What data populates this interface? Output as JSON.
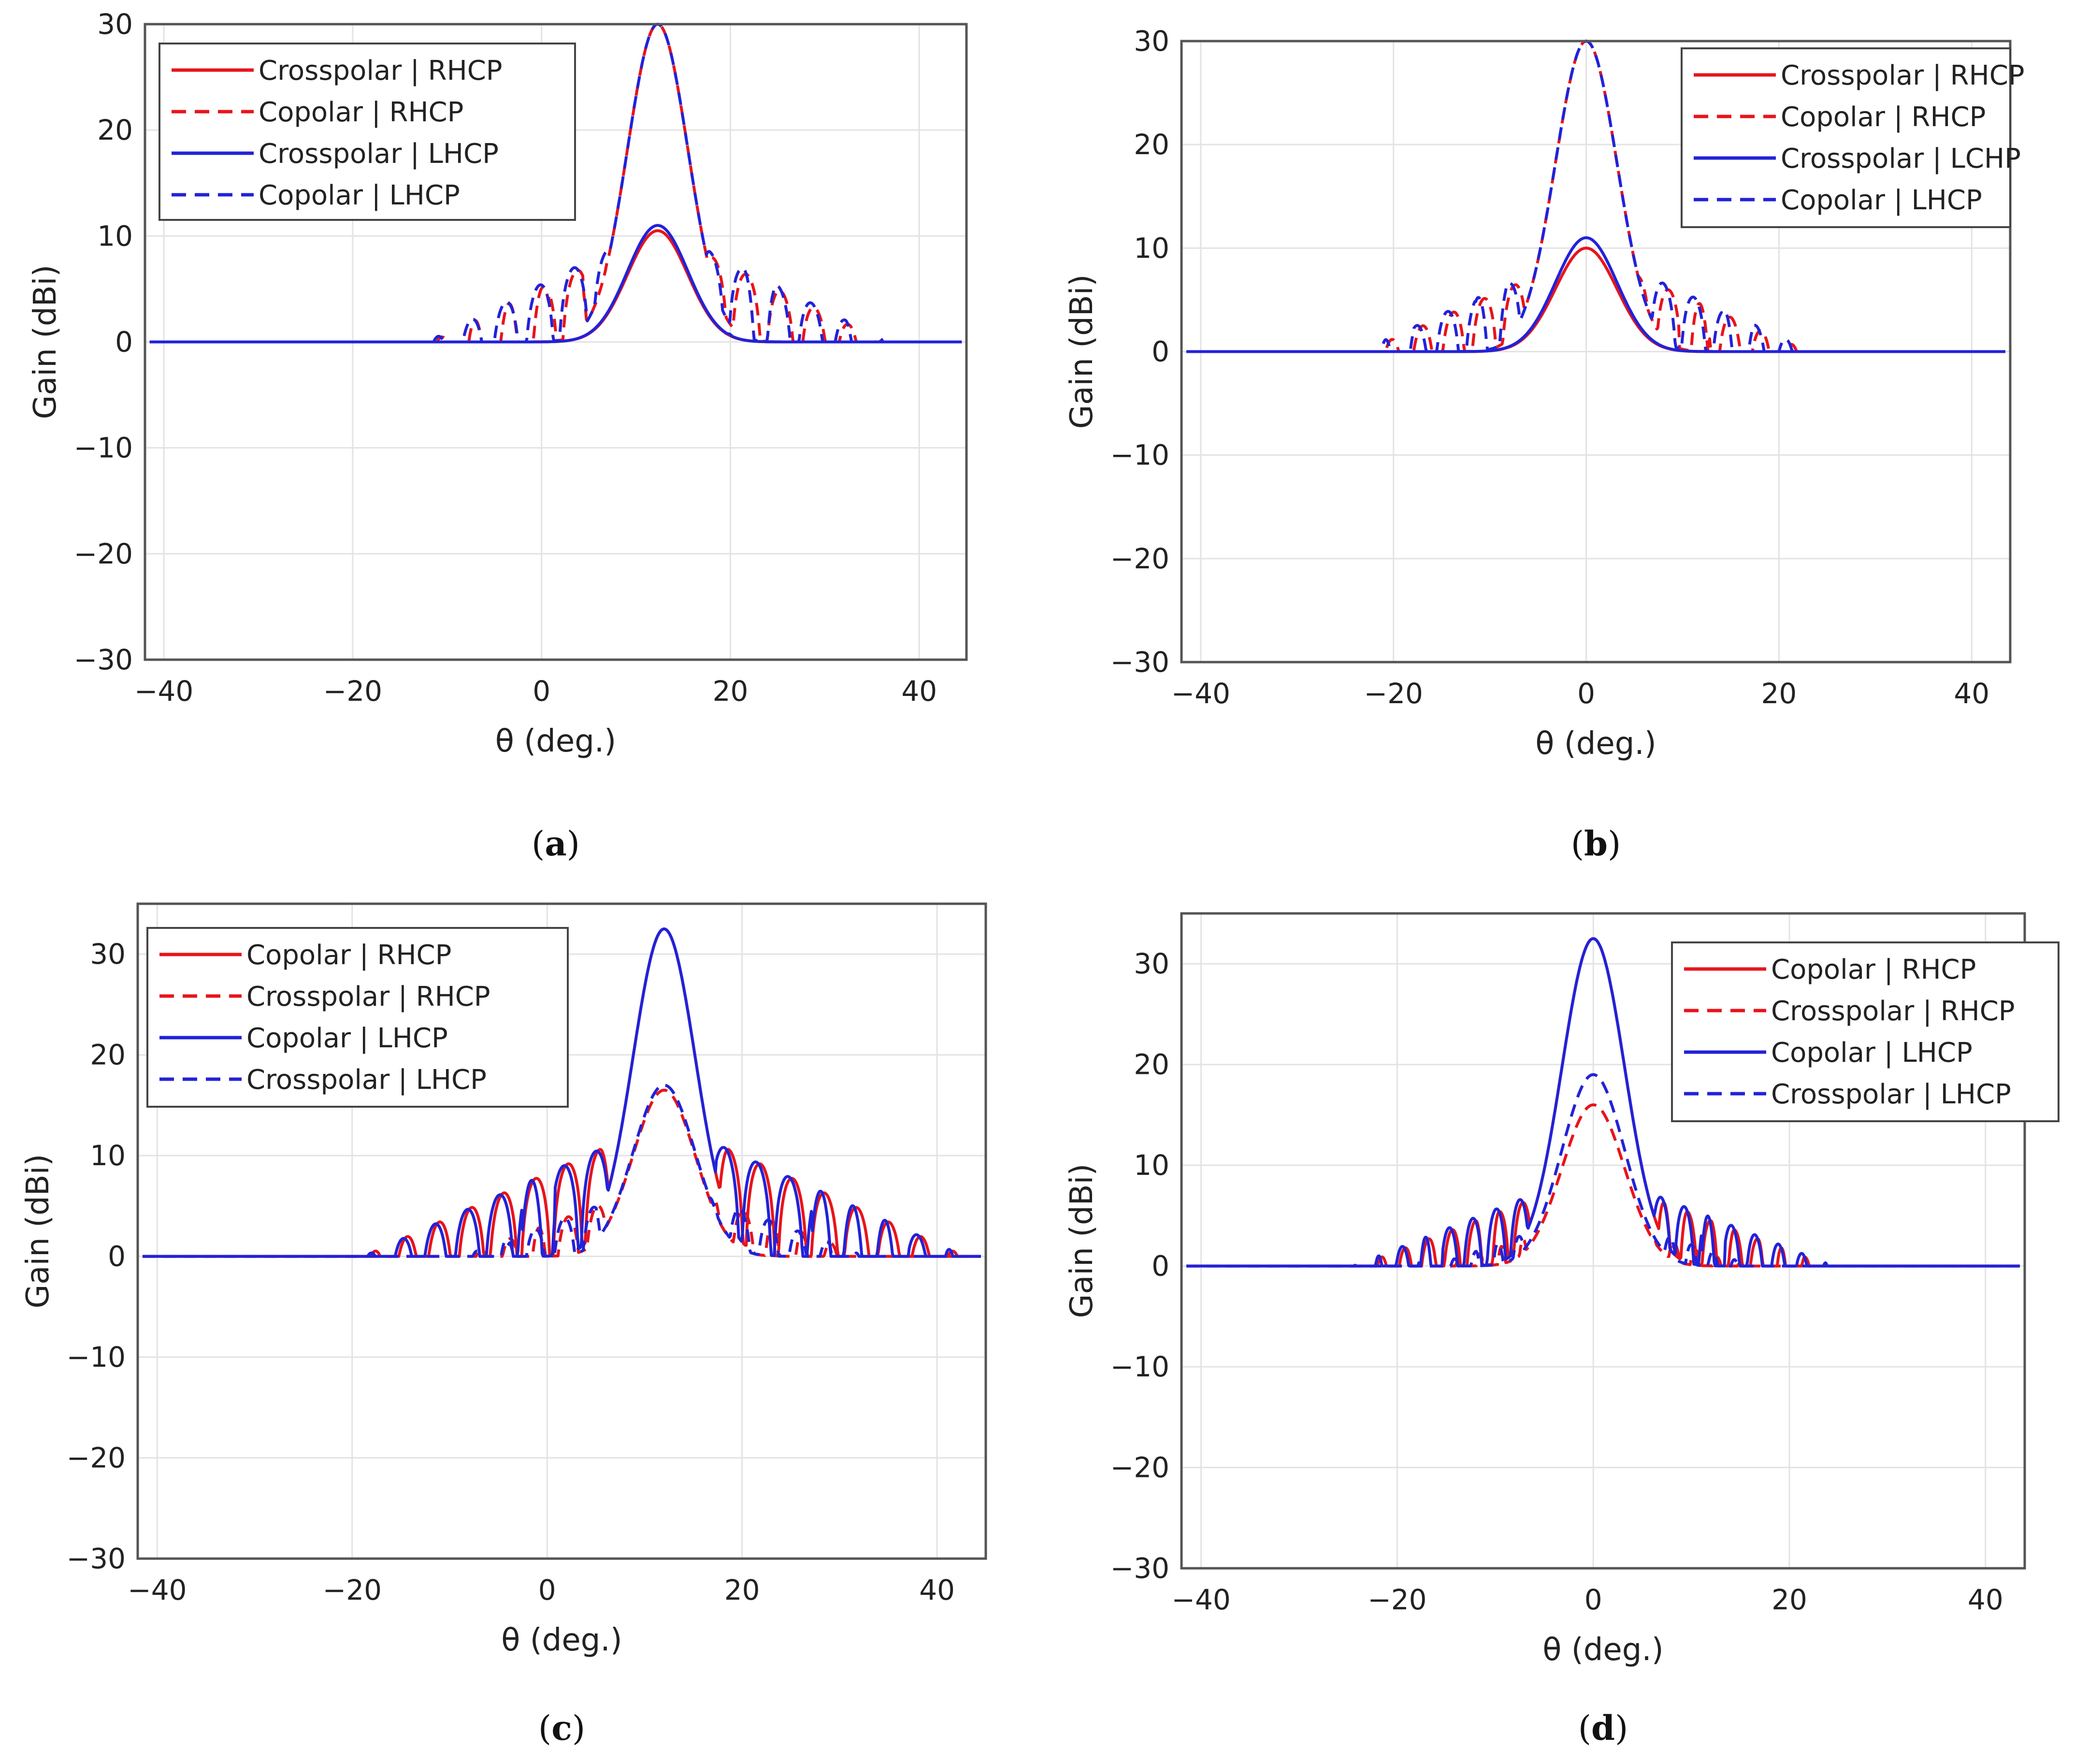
{
  "figure": {
    "panels_caption": [
      "(a)",
      "(b)",
      "(c)",
      "(d)"
    ]
  },
  "colors": {
    "red": "#e8141b",
    "blue": "#2222d8",
    "grid": "#e3e3e3",
    "axis": "#555555"
  },
  "chart_data": [
    {
      "id": "a",
      "type": "line",
      "caption_letter": "a",
      "xlabel": "θ (deg.)",
      "ylabel": "Gain (dBi)",
      "xlim": [
        -42,
        45
      ],
      "ylim": [
        -30,
        30
      ],
      "xticks": [
        -40,
        -20,
        0,
        20,
        40
      ],
      "xtick_labels": [
        "−40",
        "−20",
        "0",
        "20",
        "40"
      ],
      "yticks": [
        -30,
        -20,
        -10,
        0,
        10,
        20,
        30
      ],
      "ytick_labels": [
        "−30",
        "−20",
        "−10",
        "0",
        "10",
        "20",
        "30"
      ],
      "legend_position": "top-left",
      "center": 12.3,
      "series": [
        {
          "name": "Crosspolar | RHCP",
          "color": "red",
          "dash": false,
          "peak": 10.5,
          "sidelobe": 3.0,
          "floor": -12,
          "step": 4.4,
          "phase": 0.0,
          "deep": 0.2
        },
        {
          "name": "Copolar | RHCP",
          "color": "red",
          "dash": true,
          "peak": 30.0,
          "sidelobe": 10.5,
          "floor": -7,
          "step": 3.6,
          "phase": 1.2,
          "deep": 0.25
        },
        {
          "name": "Crosspolar | LHCP",
          "color": "blue",
          "dash": false,
          "peak": 11.0,
          "sidelobe": 3.5,
          "floor": -11,
          "step": 4.2,
          "phase": 0.6,
          "deep": 0.22
        },
        {
          "name": "Copolar | LHCP",
          "color": "blue",
          "dash": true,
          "peak": 30.0,
          "sidelobe": 11.0,
          "floor": -7,
          "step": 3.6,
          "phase": 1.5,
          "deep": 0.28
        }
      ]
    },
    {
      "id": "b",
      "type": "line",
      "caption_letter": "b",
      "xlabel": "θ (deg.)",
      "ylabel": "Gain (dBi)",
      "xlim": [
        -42,
        44
      ],
      "ylim": [
        -30,
        30
      ],
      "xticks": [
        -40,
        -20,
        0,
        20,
        40
      ],
      "xtick_labels": [
        "−40",
        "−20",
        "0",
        "20",
        "40"
      ],
      "yticks": [
        -30,
        -20,
        -10,
        0,
        10,
        20,
        30
      ],
      "ytick_labels": [
        "−30",
        "−20",
        "−10",
        "0",
        "10",
        "20",
        "30"
      ],
      "legend_position": "top-right",
      "center": 0,
      "series": [
        {
          "name": "Crosspolar | RHCP",
          "color": "red",
          "dash": false,
          "peak": 10.0,
          "sidelobe": 2.0,
          "floor": -12,
          "step": 4.6,
          "phase": 0.3,
          "deep": 0.22
        },
        {
          "name": "Copolar | RHCP",
          "color": "red",
          "dash": true,
          "peak": 30.0,
          "sidelobe": 9.5,
          "floor": -7,
          "step": 3.2,
          "phase": 1.0,
          "deep": 0.28
        },
        {
          "name": "Crosspolar | LCHP",
          "color": "blue",
          "dash": false,
          "peak": 11.0,
          "sidelobe": 2.5,
          "floor": -11,
          "step": 4.8,
          "phase": 0.8,
          "deep": 0.22
        },
        {
          "name": "Copolar | LHCP",
          "color": "blue",
          "dash": true,
          "peak": 30.0,
          "sidelobe": 10.0,
          "floor": -7,
          "step": 3.2,
          "phase": 1.6,
          "deep": 0.3
        }
      ]
    },
    {
      "id": "c",
      "type": "line",
      "caption_letter": "c",
      "xlabel": "θ (deg.)",
      "ylabel": "Gain (dBi)",
      "xlim": [
        -42,
        45
      ],
      "ylim": [
        -30,
        35
      ],
      "xticks": [
        -40,
        -20,
        0,
        20,
        40
      ],
      "xtick_labels": [
        "−40",
        "−20",
        "0",
        "20",
        "40"
      ],
      "yticks": [
        -30,
        -20,
        -10,
        0,
        10,
        20,
        30
      ],
      "ytick_labels": [
        "−30",
        "−20",
        "−10",
        "0",
        "10",
        "20",
        "30"
      ],
      "legend_position": "top-left",
      "center": 12,
      "series": [
        {
          "name": "Copolar | RHCP",
          "color": "red",
          "dash": false,
          "peak": 32.5,
          "sidelobe": 13.5,
          "floor": -4,
          "step": 3.3,
          "phase": 0.0,
          "deep": 0.3
        },
        {
          "name": "Crosspolar | RHCP",
          "color": "red",
          "dash": true,
          "peak": 16.5,
          "sidelobe": 7.5,
          "floor": -7,
          "step": 3.0,
          "phase": 0.9,
          "deep": 0.18
        },
        {
          "name": "Copolar | LHCP",
          "color": "blue",
          "dash": false,
          "peak": 32.5,
          "sidelobe": 13.5,
          "floor": -4,
          "step": 3.3,
          "phase": 0.4,
          "deep": 0.3
        },
        {
          "name": "Crosspolar | LHCP",
          "color": "blue",
          "dash": true,
          "peak": 17.0,
          "sidelobe": 7.5,
          "floor": -7,
          "step": 3.0,
          "phase": 1.3,
          "deep": 0.2
        }
      ]
    },
    {
      "id": "d",
      "type": "line",
      "caption_letter": "d",
      "xlabel": "θ (deg.)",
      "ylabel": "Gain (dBi)",
      "xlim": [
        -42,
        44
      ],
      "ylim": [
        -30,
        35
      ],
      "xticks": [
        -40,
        -20,
        0,
        20,
        40
      ],
      "xtick_labels": [
        "−40",
        "−20",
        "0",
        "20",
        "40"
      ],
      "yticks": [
        -30,
        -20,
        -10,
        0,
        10,
        20,
        30
      ],
      "ytick_labels": [
        "−30",
        "−20",
        "−10",
        "0",
        "10",
        "20",
        "30"
      ],
      "legend_position": "top-right",
      "center": 0,
      "series": [
        {
          "name": "Copolar | RHCP",
          "color": "red",
          "dash": false,
          "peak": 32.5,
          "sidelobe": 9.0,
          "floor": -6,
          "step": 2.4,
          "phase": 0.0,
          "deep": 0.28
        },
        {
          "name": "Crosspolar | RHCP",
          "color": "red",
          "dash": true,
          "peak": 16.0,
          "sidelobe": 5.0,
          "floor": -8,
          "step": 2.2,
          "phase": 0.8,
          "deep": 0.22
        },
        {
          "name": "Copolar | LHCP",
          "color": "blue",
          "dash": false,
          "peak": 32.5,
          "sidelobe": 9.5,
          "floor": -6,
          "step": 2.4,
          "phase": 0.4,
          "deep": 0.28
        },
        {
          "name": "Crosspolar | LHCP",
          "color": "blue",
          "dash": true,
          "peak": 19.0,
          "sidelobe": 5.5,
          "floor": -8,
          "step": 2.2,
          "phase": 1.4,
          "deep": 0.24
        }
      ]
    }
  ]
}
